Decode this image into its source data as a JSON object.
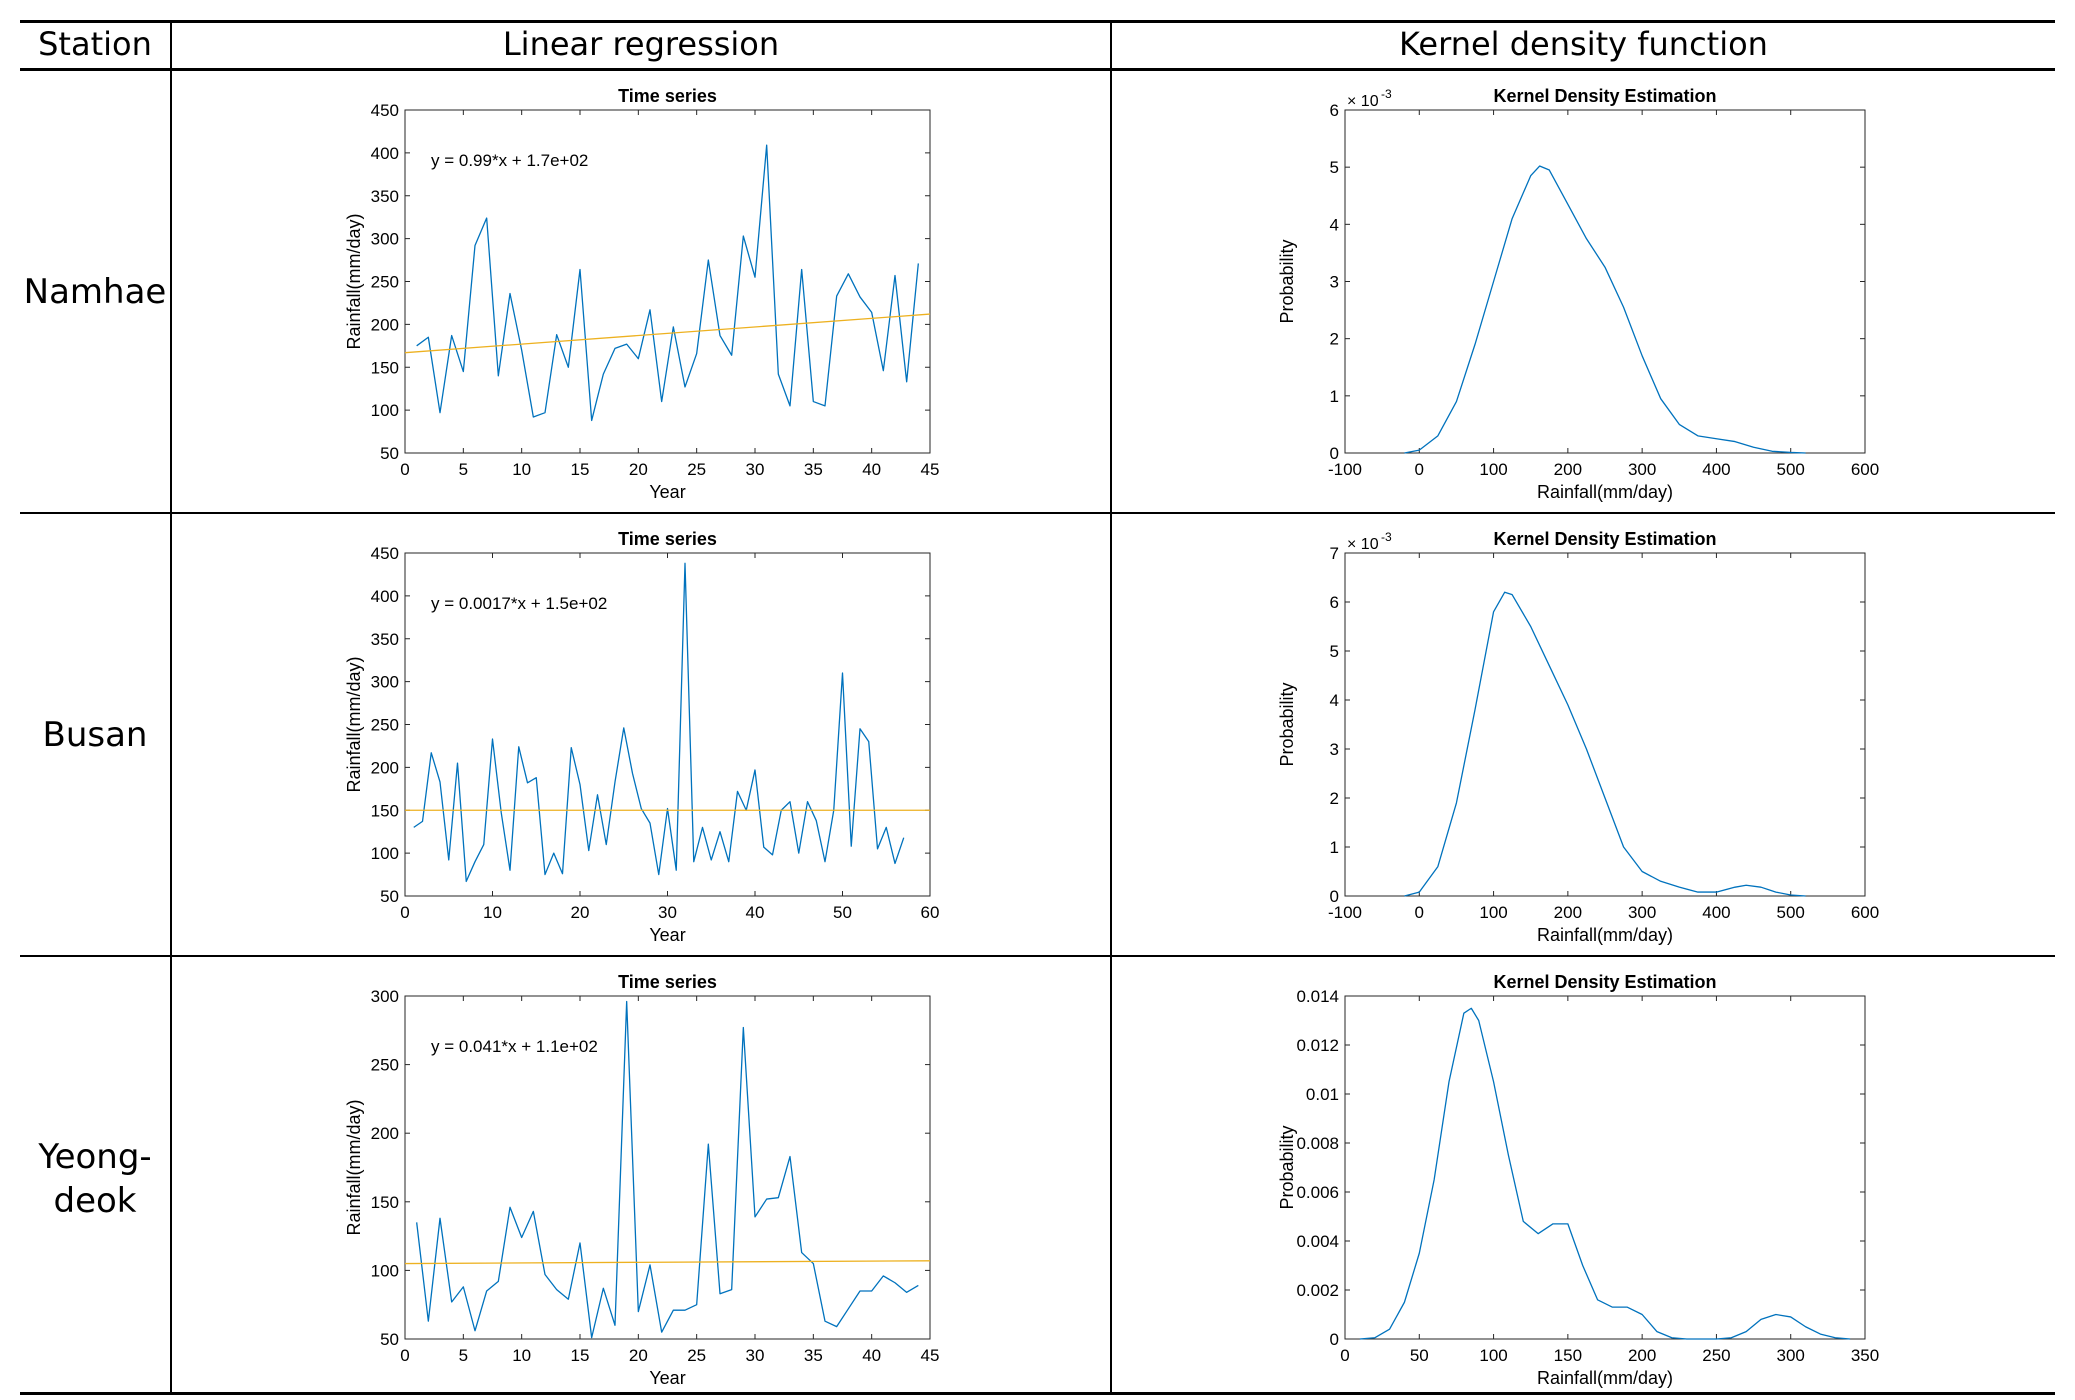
{
  "table": {
    "headers": {
      "station": "Station",
      "linear": "Linear regression",
      "kernel": "Kernel density function"
    },
    "rows": [
      {
        "station": "Namhae"
      },
      {
        "station": "Busan"
      },
      {
        "station": "Yeong-\ndeok"
      }
    ]
  },
  "chart_data": [
    {
      "id": "namhae-ts",
      "type": "line",
      "title": "Time series",
      "xlabel": "Year",
      "ylabel": "Rainfall(mm/day)",
      "xlim": [
        0,
        45
      ],
      "ylim": [
        50,
        450
      ],
      "xticks": [
        0,
        5,
        10,
        15,
        20,
        25,
        30,
        35,
        40,
        45
      ],
      "yticks": [
        50,
        100,
        150,
        200,
        250,
        300,
        350,
        400,
        450
      ],
      "annotation": "y = 0.99*x + 1.7e+02",
      "series": [
        {
          "name": "rainfall",
          "color": "#0072BD",
          "x": [
            1,
            2,
            3,
            4,
            5,
            6,
            7,
            8,
            9,
            10,
            11,
            12,
            13,
            14,
            15,
            16,
            17,
            18,
            19,
            20,
            21,
            22,
            23,
            24,
            25,
            26,
            27,
            28,
            29,
            30,
            31,
            32,
            33,
            34,
            35,
            36,
            37,
            38,
            39,
            40,
            41,
            42,
            43,
            44
          ],
          "y": [
            175,
            185,
            97,
            187,
            145,
            292,
            324,
            140,
            236,
            170,
            92,
            97,
            188,
            150,
            264,
            88,
            142,
            172,
            177,
            160,
            217,
            110,
            197,
            127,
            166,
            275,
            187,
            164,
            303,
            255,
            409,
            142,
            105,
            264,
            110,
            105,
            233,
            259,
            232,
            214,
            146,
            257,
            133,
            271
          ]
        },
        {
          "name": "trend",
          "color": "#EDB120",
          "x": [
            0,
            45
          ],
          "y": [
            167,
            212
          ]
        }
      ]
    },
    {
      "id": "namhae-kde",
      "type": "line",
      "title": "Kernel Density Estimation",
      "xlabel": "Rainfall(mm/day)",
      "ylabel": "Probability",
      "xlim": [
        -100,
        600
      ],
      "ylim": [
        0,
        6
      ],
      "xticks": [
        -100,
        0,
        100,
        200,
        300,
        400,
        500,
        600
      ],
      "yticks": [
        0,
        1,
        2,
        3,
        4,
        5,
        6
      ],
      "scale_label": "× 10",
      "scale_exp": "-3",
      "series": [
        {
          "name": "density",
          "color": "#0072BD",
          "x": [
            -20,
            0,
            25,
            50,
            75,
            100,
            125,
            150,
            162,
            175,
            200,
            225,
            250,
            275,
            300,
            325,
            350,
            375,
            400,
            425,
            450,
            475,
            500,
            520
          ],
          "y": [
            0,
            0.05,
            0.3,
            0.9,
            1.9,
            3.0,
            4.1,
            4.85,
            5.02,
            4.95,
            4.35,
            3.75,
            3.25,
            2.55,
            1.7,
            0.95,
            0.5,
            0.3,
            0.25,
            0.2,
            0.1,
            0.03,
            0.01,
            0
          ]
        }
      ]
    },
    {
      "id": "busan-ts",
      "type": "line",
      "title": "Time series",
      "xlabel": "Year",
      "ylabel": "Rainfall(mm/day)",
      "xlim": [
        0,
        60
      ],
      "ylim": [
        50,
        450
      ],
      "xticks": [
        0,
        10,
        20,
        30,
        40,
        50,
        60
      ],
      "yticks": [
        50,
        100,
        150,
        200,
        250,
        300,
        350,
        400,
        450
      ],
      "annotation": "y = 0.0017*x + 1.5e+02",
      "series": [
        {
          "name": "rainfall",
          "color": "#0072BD",
          "x": [
            1,
            2,
            3,
            4,
            5,
            6,
            7,
            8,
            9,
            10,
            11,
            12,
            13,
            14,
            15,
            16,
            17,
            18,
            19,
            20,
            21,
            22,
            23,
            24,
            25,
            26,
            27,
            28,
            29,
            30,
            31,
            32,
            33,
            34,
            35,
            36,
            37,
            38,
            39,
            40,
            41,
            42,
            43,
            44,
            45,
            46,
            47,
            48,
            49,
            50,
            51,
            52,
            53,
            54,
            55,
            56,
            57
          ],
          "y": [
            130,
            137,
            217,
            183,
            92,
            205,
            67,
            90,
            110,
            233,
            147,
            80,
            224,
            182,
            188,
            75,
            100,
            76,
            223,
            180,
            103,
            168,
            110,
            183,
            246,
            193,
            152,
            135,
            75,
            152,
            80,
            438,
            90,
            130,
            92,
            125,
            90,
            172,
            150,
            197,
            107,
            98,
            150,
            160,
            100,
            160,
            138,
            90,
            150,
            310,
            108,
            245,
            230,
            105,
            130,
            88,
            118
          ]
        },
        {
          "name": "trend",
          "color": "#EDB120",
          "x": [
            0,
            60
          ],
          "y": [
            150,
            150
          ]
        }
      ]
    },
    {
      "id": "busan-kde",
      "type": "line",
      "title": "Kernel Density Estimation",
      "xlabel": "Rainfall(mm/day)",
      "ylabel": "Probability",
      "xlim": [
        -100,
        600
      ],
      "ylim": [
        0,
        7
      ],
      "xticks": [
        -100,
        0,
        100,
        200,
        300,
        400,
        500,
        600
      ],
      "yticks": [
        0,
        1,
        2,
        3,
        4,
        5,
        6,
        7
      ],
      "scale_label": "× 10",
      "scale_exp": "-3",
      "series": [
        {
          "name": "density",
          "color": "#0072BD",
          "x": [
            -20,
            0,
            25,
            50,
            75,
            100,
            115,
            125,
            150,
            175,
            200,
            225,
            250,
            275,
            300,
            325,
            350,
            375,
            400,
            425,
            440,
            460,
            480,
            500,
            520
          ],
          "y": [
            0,
            0.08,
            0.6,
            1.9,
            3.8,
            5.8,
            6.2,
            6.15,
            5.5,
            4.7,
            3.9,
            3.0,
            2.0,
            1.0,
            0.5,
            0.3,
            0.18,
            0.08,
            0.08,
            0.18,
            0.22,
            0.18,
            0.08,
            0.02,
            0
          ]
        }
      ]
    },
    {
      "id": "yeongdeok-ts",
      "type": "line",
      "title": "Time series",
      "xlabel": "Year",
      "ylabel": "Rainfall(mm/day)",
      "xlim": [
        0,
        45
      ],
      "ylim": [
        50,
        300
      ],
      "xticks": [
        0,
        5,
        10,
        15,
        20,
        25,
        30,
        35,
        40,
        45
      ],
      "yticks": [
        50,
        100,
        150,
        200,
        250,
        300
      ],
      "annotation": "y = 0.041*x + 1.1e+02",
      "series": [
        {
          "name": "rainfall",
          "color": "#0072BD",
          "x": [
            1,
            2,
            3,
            4,
            5,
            6,
            7,
            8,
            9,
            10,
            11,
            12,
            13,
            14,
            15,
            16,
            17,
            18,
            19,
            20,
            21,
            22,
            23,
            24,
            25,
            26,
            27,
            28,
            29,
            30,
            31,
            32,
            33,
            34,
            35,
            36,
            37,
            38,
            39,
            40,
            41,
            42,
            43,
            44
          ],
          "y": [
            135,
            63,
            138,
            77,
            88,
            56,
            85,
            92,
            146,
            124,
            143,
            97,
            86,
            79,
            120,
            51,
            87,
            60,
            296,
            70,
            104,
            55,
            71,
            71,
            75,
            192,
            83,
            86,
            277,
            139,
            152,
            153,
            183,
            113,
            105,
            63,
            59,
            72,
            85,
            85,
            96,
            91,
            84,
            89
          ]
        },
        {
          "name": "trend",
          "color": "#EDB120",
          "x": [
            0,
            45
          ],
          "y": [
            105,
            107
          ]
        }
      ]
    },
    {
      "id": "yeongdeok-kde",
      "type": "line",
      "title": "Kernel Density Estimation",
      "xlabel": "Rainfall(mm/day)",
      "ylabel": "Probability",
      "xlim": [
        0,
        350
      ],
      "ylim": [
        0,
        0.014
      ],
      "xticks": [
        0,
        50,
        100,
        150,
        200,
        250,
        300,
        350
      ],
      "yticks": [
        0,
        0.002,
        0.004,
        0.006,
        0.008,
        0.01,
        0.012,
        0.014
      ],
      "series": [
        {
          "name": "density",
          "color": "#0072BD",
          "x": [
            10,
            20,
            30,
            40,
            50,
            60,
            70,
            80,
            85,
            90,
            100,
            110,
            120,
            130,
            140,
            150,
            160,
            170,
            180,
            190,
            200,
            210,
            220,
            230,
            240,
            250,
            260,
            270,
            280,
            290,
            300,
            310,
            320,
            330,
            340
          ],
          "y": [
            0,
            5e-05,
            0.0004,
            0.0015,
            0.0035,
            0.0065,
            0.0105,
            0.0133,
            0.0135,
            0.013,
            0.0105,
            0.0075,
            0.0048,
            0.0043,
            0.0047,
            0.0047,
            0.003,
            0.0016,
            0.0013,
            0.0013,
            0.001,
            0.0003,
            5e-05,
            0,
            0,
            0,
            5e-05,
            0.0003,
            0.0008,
            0.001,
            0.0009,
            0.0005,
            0.0002,
            5e-05,
            0
          ]
        }
      ]
    }
  ]
}
